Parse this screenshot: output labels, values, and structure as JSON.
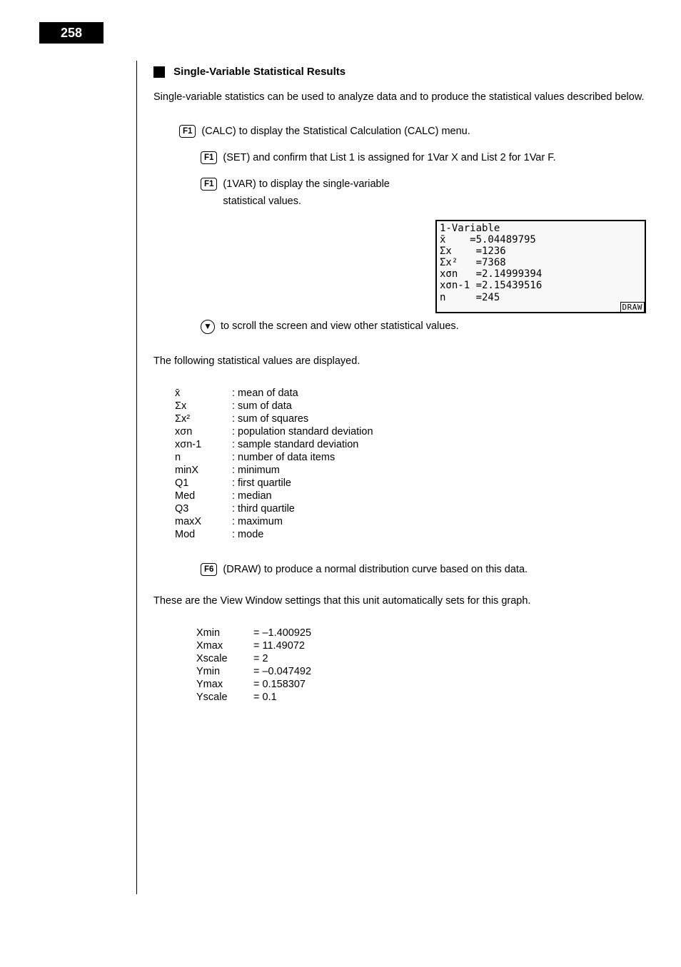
{
  "page_number": "258",
  "section_title": "Single-Variable Statistical Results",
  "intro": "Single-variable statistics can be used to analyze data and to produce the statistical values described below.",
  "step1_key": "F1",
  "step1_text": "(CALC) to display the Statistical Calculation (CALC) menu.",
  "step2_key": "F1",
  "step2_text": "(SET) and confirm that List 1 is assigned for 1Var X and List 2 for 1Var F.",
  "step3_key": "F1",
  "step3_text": "(1VAR) to display the single-variable statistical values.",
  "down_text": "to scroll the screen and view other statistical values.",
  "screenshot": {
    "title": "1-Variable",
    "rows": [
      {
        "label": "x̄",
        "value": "=5.04489795"
      },
      {
        "label": "Σx",
        "value": "=1236"
      },
      {
        "label": "Σx²",
        "value": "=7368"
      },
      {
        "label": "xσn",
        "value": "=2.14999394"
      },
      {
        "label": "xσn-1",
        "value": "=2.15439516"
      },
      {
        "label": "n",
        "value": "=245"
      }
    ],
    "draw_label": "DRAW"
  },
  "values_intro": "The following statistical values are displayed.",
  "vars": [
    {
      "sym": "x̄",
      "desc": "mean of data"
    },
    {
      "sym": "Σx",
      "desc": "sum of data"
    },
    {
      "sym": "Σx²",
      "desc": "sum of squares"
    },
    {
      "sym": "xσn",
      "desc": "population standard deviation"
    },
    {
      "sym": "xσn-1",
      "desc": "sample standard deviation"
    },
    {
      "sym": "n",
      "desc": "number of data items"
    },
    {
      "sym": "minX",
      "desc": "minimum"
    },
    {
      "sym": "Q1",
      "desc": "first quartile"
    },
    {
      "sym": "Med",
      "desc": "median"
    },
    {
      "sym": "Q3",
      "desc": "third quartile"
    },
    {
      "sym": "maxX",
      "desc": "maximum"
    },
    {
      "sym": "Mod",
      "desc": "mode"
    }
  ],
  "graph_key": "F6",
  "graph_text": "(DRAW) to produce a normal distribution curve based on this data.",
  "graph_settings_intro": "These are the View Window settings that this unit automatically sets for this graph.",
  "vw": [
    {
      "k": "Xmin",
      "v": "= –1.400925"
    },
    {
      "k": "Xmax",
      "v": "= 11.49072"
    },
    {
      "k": "Xscale",
      "v": "= 2"
    },
    {
      "k": "Ymin",
      "v": "= –0.047492"
    },
    {
      "k": "Ymax",
      "v": "= 0.158307"
    },
    {
      "k": "Yscale",
      "v": "= 0.1"
    }
  ]
}
